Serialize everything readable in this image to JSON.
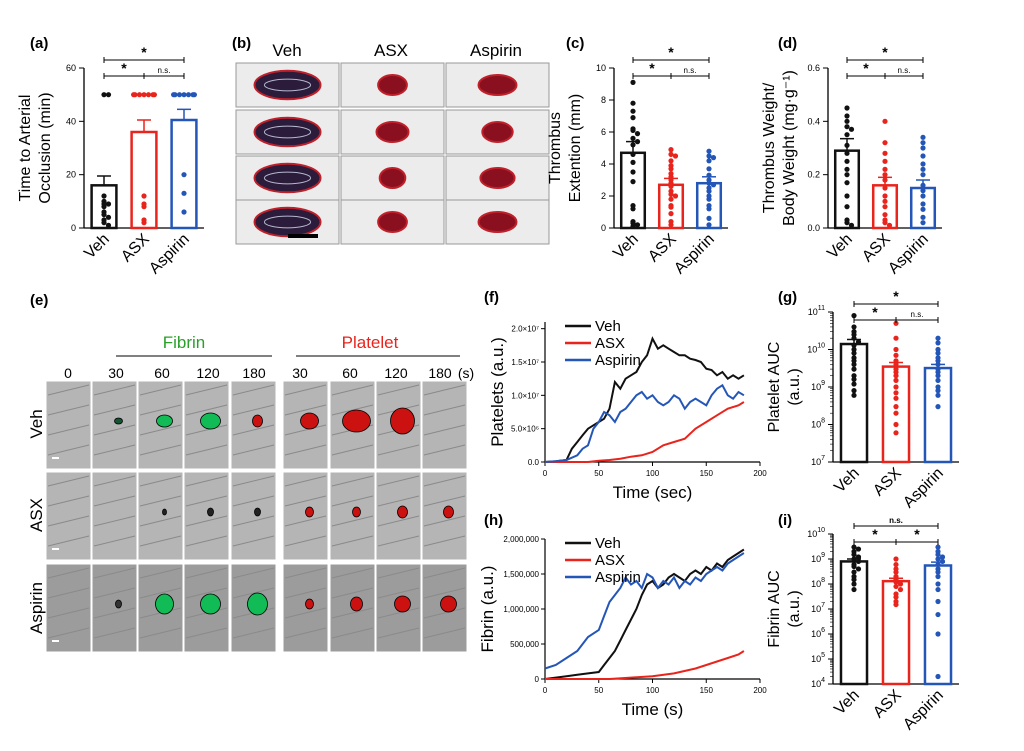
{
  "colors": {
    "veh": "#111111",
    "asx": "#e8241c",
    "aspirin": "#2456b8",
    "fibrin_label": "#2aa02a",
    "platelet_label": "#e8241c"
  },
  "panel_letters": [
    "(a)",
    "(b)",
    "(c)",
    "(d)",
    "(e)",
    "(f)",
    "(g)",
    "(h)",
    "(i)"
  ],
  "chart_data": [
    {
      "id": "a",
      "type": "bar",
      "ylabel": "Time to Arterial Occlusion (min)",
      "ylabel_lines": [
        "Time to Arterial",
        "Occlusion (min)"
      ],
      "categories": [
        "Veh",
        "ASX",
        "Aspirin"
      ],
      "values": [
        16,
        36,
        40.5
      ],
      "errors": [
        3.5,
        4.5,
        4
      ],
      "ylim": [
        0,
        60
      ],
      "yticks": [
        "0",
        "20",
        "40",
        "60"
      ],
      "log": false,
      "points": [
        [
          50,
          50,
          12,
          10,
          9,
          9,
          8,
          6,
          5,
          4,
          3,
          2,
          1
        ],
        [
          50,
          50,
          50,
          50,
          50,
          50,
          50,
          12,
          9,
          8,
          3,
          2
        ],
        [
          50,
          50,
          50,
          50,
          50,
          50,
          50,
          20,
          13,
          6
        ]
      ],
      "sig": {
        "top": "*",
        "left": "*",
        "right": "n.s."
      }
    },
    {
      "id": "c",
      "type": "bar",
      "ylabel": "Thrombus Extention (mm)",
      "ylabel_lines": [
        "Thrombus",
        "Extention (mm)"
      ],
      "categories": [
        "Veh",
        "ASX",
        "Aspirin"
      ],
      "values": [
        4.7,
        2.7,
        2.8
      ],
      "errors": [
        0.7,
        0.4,
        0.4
      ],
      "ylim": [
        0,
        10
      ],
      "yticks": [
        "0",
        "2",
        "4",
        "6",
        "8",
        "10"
      ],
      "log": false,
      "points": [
        [
          9.1,
          7.8,
          7.3,
          6.9,
          6.2,
          6.1,
          5.9,
          5.6,
          5.4,
          5.2,
          4.6,
          4.1,
          3.5,
          2.9,
          1.4,
          1.2,
          0.4,
          0.3,
          0.2,
          0.1
        ],
        [
          4.9,
          4.6,
          4.5,
          4.2,
          3.9,
          3.7,
          3.4,
          3.2,
          3.0,
          2.8,
          2.6,
          2.3,
          2.1,
          2.0,
          1.8,
          1.4,
          1.3,
          0.9,
          0.4,
          0.2
        ],
        [
          4.8,
          4.5,
          4.4,
          4.2,
          3.7,
          3.3,
          3.0,
          2.8,
          2.7,
          2.5,
          2.3,
          2.0,
          1.8,
          1.4,
          1.2,
          0.6,
          0.2
        ]
      ],
      "sig": {
        "top": "*",
        "left": "*",
        "right": "n.s."
      }
    },
    {
      "id": "d",
      "type": "bar",
      "ylabel": "Thrombus Weight/ Body Weight (mg·g⁻¹)",
      "ylabel_lines": [
        "Thrombus Weight/",
        "Body Weight (mg·g⁻¹)"
      ],
      "categories": [
        "Veh",
        "ASX",
        "Aspirin"
      ],
      "values": [
        0.29,
        0.16,
        0.15
      ],
      "errors": [
        0.045,
        0.03,
        0.03
      ],
      "ylim": [
        0,
        0.6
      ],
      "yticks": [
        "0.0",
        "0.2",
        "0.4",
        "0.6"
      ],
      "log": false,
      "points": [
        [
          0.45,
          0.42,
          0.4,
          0.38,
          0.37,
          0.35,
          0.31,
          0.28,
          0.25,
          0.22,
          0.2,
          0.17,
          0.12,
          0.08,
          0.03,
          0.02,
          0.01
        ],
        [
          0.4,
          0.32,
          0.28,
          0.25,
          0.22,
          0.2,
          0.18,
          0.15,
          0.12,
          0.1,
          0.08,
          0.05,
          0.03,
          0.02,
          0.01
        ],
        [
          0.34,
          0.32,
          0.3,
          0.27,
          0.24,
          0.22,
          0.2,
          0.16,
          0.14,
          0.12,
          0.09,
          0.07,
          0.04,
          0.02
        ]
      ],
      "sig": {
        "top": "*",
        "left": "*",
        "right": "n.s."
      }
    },
    {
      "id": "g",
      "type": "bar",
      "ylabel": "Platelet AUC (a.u.)",
      "ylabel_lines": [
        "Platelet AUC",
        "(a.u.)"
      ],
      "categories": [
        "Veh",
        "ASX",
        "Aspirin"
      ],
      "values": [
        14000000000.0,
        3500000000.0,
        3200000000.0
      ],
      "errors": [
        4500000000.0,
        1000000000.0,
        800000000.0
      ],
      "ylim": [
        10000000.0,
        100000000000.0
      ],
      "log": true,
      "yticks_exp": [
        7,
        8,
        9,
        10,
        11
      ],
      "points": [
        [
          80000000000.0,
          40000000000.0,
          30000000000.0,
          25000000000.0,
          20000000000.0,
          16000000000.0,
          13000000000.0,
          10000000000.0,
          8000000000.0,
          6000000000.0,
          5000000000.0,
          4000000000.0,
          3000000000.0,
          2000000000.0,
          1600000000.0,
          1200000000.0,
          800000000.0,
          600000000.0
        ],
        [
          50000000000.0,
          20000000000.0,
          10000000000.0,
          7000000000.0,
          5000000000.0,
          4000000000.0,
          3000000000.0,
          2500000000.0,
          2000000000.0,
          1500000000.0,
          1000000000.0,
          700000000.0,
          500000000.0,
          300000000.0,
          200000000.0,
          100000000.0,
          60000000.0
        ],
        [
          20000000000.0,
          15000000000.0,
          10000000000.0,
          8000000000.0,
          6000000000.0,
          5000000000.0,
          4000000000.0,
          3000000000.0,
          2500000000.0,
          2000000000.0,
          1500000000.0,
          1000000000.0,
          800000000.0,
          600000000.0,
          300000000.0
        ]
      ],
      "sig": {
        "top": "*",
        "left": "*",
        "right": "n.s."
      }
    },
    {
      "id": "i",
      "type": "bar",
      "ylabel": "Fibrin AUC (a.u.)",
      "ylabel_lines": [
        "Fibrin AUC",
        "(a.u.)"
      ],
      "categories": [
        "Veh",
        "ASX",
        "Aspirin"
      ],
      "values": [
        800000000.0,
        130000000.0,
        550000000.0
      ],
      "errors": [
        200000000.0,
        40000000.0,
        200000000.0
      ],
      "ylim": [
        10000.0,
        10000000000.0
      ],
      "log": true,
      "yticks_exp": [
        4,
        5,
        6,
        7,
        8,
        9,
        10
      ],
      "points": [
        [
          3000000000.0,
          2500000000.0,
          2000000000.0,
          1500000000.0,
          1200000000.0,
          1000000000.0,
          800000000.0,
          600000000.0,
          500000000.0,
          400000000.0,
          300000000.0,
          200000000.0,
          150000000.0,
          100000000.0,
          60000000.0
        ],
        [
          1000000000.0,
          600000000.0,
          400000000.0,
          300000000.0,
          200000000.0,
          150000000.0,
          120000000.0,
          100000000.0,
          80000000.0,
          60000000.0,
          40000000.0,
          30000000.0,
          20000000.0,
          15000000.0
        ],
        [
          3000000000.0,
          2000000000.0,
          1500000000.0,
          1200000000.0,
          1000000000.0,
          800000000.0,
          600000000.0,
          400000000.0,
          300000000.0,
          200000000.0,
          100000000.0,
          60000000.0,
          20000000.0,
          6000000.0,
          1000000.0,
          20000.0
        ]
      ],
      "sig": {
        "top": "n.s.",
        "left": "*",
        "right": "*"
      }
    },
    {
      "id": "f",
      "type": "line",
      "ylabel": "Platelets (a.u.)",
      "xlabel": "Time (sec)",
      "xlim": [
        0,
        200
      ],
      "ylim": [
        0,
        21000000.0
      ],
      "xticks": [
        "0",
        "50",
        "100",
        "150",
        "200"
      ],
      "ytick_values": [
        0,
        5000000.0,
        10000000.0,
        15000000.0,
        20000000.0
      ],
      "yticks": [
        "0.0",
        "5.0×10⁶",
        "1.0×10⁷",
        "1.5×10⁷",
        "2.0×10⁷"
      ],
      "legend": [
        "Veh",
        "ASX",
        "Aspirin"
      ],
      "series": [
        {
          "name": "Veh",
          "x": [
            0,
            10,
            20,
            25,
            30,
            35,
            40,
            45,
            50,
            55,
            60,
            65,
            70,
            75,
            80,
            85,
            90,
            95,
            100,
            105,
            110,
            115,
            120,
            125,
            130,
            135,
            140,
            145,
            150,
            155,
            160,
            165,
            170,
            175,
            180,
            185
          ],
          "y": [
            0,
            100000.0,
            300000.0,
            2000000.0,
            3000000.0,
            4000000.0,
            5000000.0,
            5500000.0,
            6000000.0,
            6500000.0,
            8000000.0,
            12000000.0,
            11000000.0,
            12500000.0,
            13000000.0,
            13500000.0,
            15000000.0,
            16000000.0,
            18500000.0,
            17000000.0,
            17500000.0,
            17000000.0,
            16500000.0,
            16000000.0,
            16000000.0,
            15500000.0,
            15300000.0,
            15000000.0,
            14000000.0,
            13800000.0,
            13000000.0,
            13500000.0,
            12500000.0,
            13000000.0,
            12500000.0,
            13000000.0
          ]
        },
        {
          "name": "ASX",
          "x": [
            0,
            20,
            40,
            50,
            60,
            70,
            80,
            90,
            100,
            110,
            120,
            130,
            140,
            150,
            160,
            170,
            180,
            185
          ],
          "y": [
            0,
            0,
            0,
            200000.0,
            300000.0,
            500000.0,
            800000.0,
            1000000.0,
            1500000.0,
            2500000.0,
            3000000.0,
            3500000.0,
            5000000.0,
            6000000.0,
            7000000.0,
            8000000.0,
            8500000.0,
            9000000.0
          ]
        },
        {
          "name": "Aspirin",
          "x": [
            0,
            10,
            20,
            30,
            35,
            40,
            45,
            50,
            55,
            60,
            65,
            70,
            75,
            80,
            85,
            90,
            95,
            100,
            105,
            110,
            115,
            120,
            125,
            130,
            135,
            140,
            145,
            150,
            155,
            160,
            165,
            170,
            175,
            180,
            185
          ],
          "y": [
            0,
            100000.0,
            300000.0,
            1000000.0,
            2000000.0,
            2500000.0,
            5000000.0,
            6000000.0,
            7500000.0,
            7000000.0,
            6000000.0,
            7500000.0,
            8000000.0,
            9000000.0,
            10000000.0,
            10500000.0,
            9500000.0,
            10000000.0,
            9000000.0,
            8500000.0,
            9000000.0,
            10000000.0,
            9500000.0,
            8000000.0,
            9000000.0,
            9500000.0,
            9000000.0,
            8500000.0,
            10000000.0,
            11000000.0,
            11500000.0,
            10000000.0,
            9500000.0,
            10500000.0,
            10000000.0
          ]
        }
      ]
    },
    {
      "id": "h",
      "type": "line",
      "ylabel": "Fibrin (a.u.)",
      "xlabel": "Time (s)",
      "xlim": [
        0,
        200
      ],
      "ylim": [
        0,
        2000000
      ],
      "xticks": [
        "0",
        "50",
        "100",
        "150",
        "200"
      ],
      "ytick_values": [
        0,
        500000,
        1000000,
        1500000,
        2000000
      ],
      "yticks": [
        "0",
        "500,000",
        "1,000,000",
        "1,500,000",
        "2,000,000"
      ],
      "legend": [
        "Veh",
        "ASX",
        "Aspirin"
      ],
      "series": [
        {
          "name": "Veh",
          "x": [
            0,
            10,
            20,
            30,
            40,
            50,
            55,
            60,
            65,
            70,
            75,
            80,
            85,
            90,
            95,
            100,
            105,
            110,
            115,
            120,
            125,
            130,
            135,
            140,
            145,
            150,
            155,
            160,
            165,
            170,
            175,
            180,
            185
          ],
          "y": [
            0,
            20000,
            40000,
            60000,
            80000,
            100000,
            200000,
            300000,
            400000,
            550000,
            700000,
            850000,
            1000000,
            1200000,
            1350000,
            1400000,
            1300000,
            1350000,
            1450000,
            1500000,
            1450000,
            1400000,
            1500000,
            1550000,
            1500000,
            1600000,
            1550000,
            1650000,
            1600000,
            1700000,
            1750000,
            1800000,
            1850000
          ]
        },
        {
          "name": "ASX",
          "x": [
            0,
            20,
            40,
            60,
            80,
            100,
            120,
            140,
            150,
            160,
            170,
            180,
            185
          ],
          "y": [
            0,
            0,
            0,
            0,
            20000,
            40000,
            80000,
            150000,
            200000,
            250000,
            300000,
            350000,
            400000
          ]
        },
        {
          "name": "Aspirin",
          "x": [
            0,
            10,
            20,
            30,
            40,
            50,
            55,
            60,
            65,
            70,
            75,
            80,
            85,
            90,
            95,
            100,
            105,
            110,
            115,
            120,
            125,
            130,
            135,
            140,
            145,
            150,
            155,
            160,
            165,
            170,
            175,
            180,
            185
          ],
          "y": [
            150000,
            200000,
            300000,
            400000,
            600000,
            700000,
            900000,
            1100000,
            1200000,
            1300000,
            1450000,
            1350000,
            1400000,
            1300000,
            1500000,
            1450000,
            1300000,
            1400000,
            1350000,
            1450000,
            1300000,
            1400000,
            1350000,
            1450000,
            1400000,
            1500000,
            1550000,
            1600000,
            1550000,
            1650000,
            1700000,
            1750000,
            1800000
          ]
        }
      ]
    }
  ],
  "panel_b": {
    "columns": [
      "Veh",
      "ASX",
      "Aspirin"
    ],
    "rows": 4
  },
  "panel_e": {
    "group_fibrin": "Fibrin",
    "group_platelet": "Platelet",
    "time_labels": [
      "0",
      "30",
      "60",
      "120",
      "180",
      "30",
      "60",
      "120",
      "180",
      "(s)"
    ],
    "rows": [
      "Veh",
      "ASX",
      "Aspirin"
    ]
  }
}
